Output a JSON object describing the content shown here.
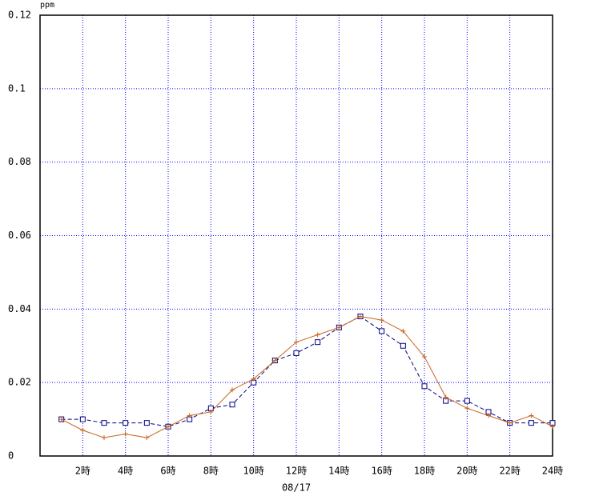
{
  "chart_data": {
    "type": "line",
    "y_unit": "ppm",
    "x_label": "08/17",
    "x": [
      1,
      2,
      3,
      4,
      5,
      6,
      7,
      8,
      9,
      10,
      11,
      12,
      13,
      14,
      15,
      16,
      17,
      18,
      19,
      20,
      21,
      22,
      23,
      24
    ],
    "xlim": [
      0,
      24
    ],
    "xticks": [
      {
        "value": 2,
        "label": "2時"
      },
      {
        "value": 4,
        "label": "4時"
      },
      {
        "value": 6,
        "label": "6時"
      },
      {
        "value": 8,
        "label": "8時"
      },
      {
        "value": 10,
        "label": "10時"
      },
      {
        "value": 12,
        "label": "12時"
      },
      {
        "value": 14,
        "label": "14時"
      },
      {
        "value": 16,
        "label": "16時"
      },
      {
        "value": 18,
        "label": "18時"
      },
      {
        "value": 20,
        "label": "20時"
      },
      {
        "value": 22,
        "label": "22時"
      },
      {
        "value": 24,
        "label": "24時"
      }
    ],
    "ylim": [
      0,
      0.12
    ],
    "yticks": [
      0,
      0.02,
      0.04,
      0.06,
      0.08,
      0.1,
      0.12
    ],
    "grid": true,
    "series": [
      {
        "color": "#000080",
        "marker": "square",
        "dash": true,
        "values": [
          0.01,
          0.01,
          0.009,
          0.009,
          0.009,
          0.008,
          0.01,
          0.013,
          0.014,
          0.02,
          0.026,
          0.028,
          0.031,
          0.035,
          0.038,
          0.034,
          0.03,
          0.019,
          0.015,
          0.015,
          0.012,
          0.009,
          0.009,
          0.009
        ]
      },
      {
        "color": "#c8641e",
        "marker": "plus",
        "dash": false,
        "values": [
          0.01,
          0.007,
          0.005,
          0.006,
          0.005,
          0.008,
          0.011,
          0.012,
          0.018,
          0.021,
          0.026,
          0.031,
          0.033,
          0.035,
          0.038,
          0.037,
          0.034,
          0.027,
          0.016,
          0.013,
          0.011,
          0.009,
          0.011,
          0.008
        ]
      }
    ]
  }
}
